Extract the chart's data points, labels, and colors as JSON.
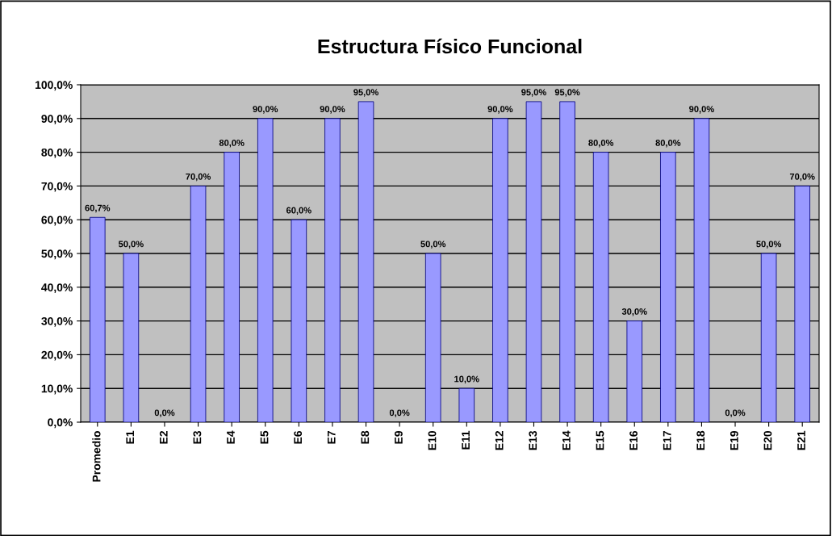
{
  "chart_data": {
    "type": "bar",
    "title": "Estructura Físico Funcional",
    "categories": [
      "Promedio",
      "E1",
      "E2",
      "E3",
      "E4",
      "E5",
      "E6",
      "E7",
      "E8",
      "E9",
      "E10",
      "E11",
      "E12",
      "E13",
      "E14",
      "E15",
      "E16",
      "E17",
      "E18",
      "E19",
      "E20",
      "E21"
    ],
    "values": [
      60.7,
      50,
      0,
      70,
      80,
      90,
      60,
      90,
      95,
      0,
      50,
      10,
      90,
      95,
      95,
      80,
      30,
      80,
      90,
      0,
      50,
      70
    ],
    "value_labels": [
      "60,7%",
      "50,0%",
      "0,0%",
      "70,0%",
      "80,0%",
      "90,0%",
      "60,0%",
      "90,0%",
      "95,0%",
      "0,0%",
      "50,0%",
      "10,0%",
      "90,0%",
      "95,0%",
      "95,0%",
      "80,0%",
      "30,0%",
      "80,0%",
      "90,0%",
      "0,0%",
      "50,0%",
      "70,0%"
    ],
    "color": "#9999ff",
    "ylim": [
      0,
      100
    ],
    "yticks": [
      {
        "value": 0,
        "label": "0,0%"
      },
      {
        "value": 10,
        "label": "10,0%"
      },
      {
        "value": 20,
        "label": "20,0%"
      },
      {
        "value": 30,
        "label": "30,0%"
      },
      {
        "value": 40,
        "label": "40,0%"
      },
      {
        "value": 50,
        "label": "50,0%"
      },
      {
        "value": 60,
        "label": "60,0%"
      },
      {
        "value": 70,
        "label": "70,0%"
      },
      {
        "value": 80,
        "label": "80,0%"
      },
      {
        "value": 90,
        "label": "90,0%"
      },
      {
        "value": 100,
        "label": "100,0%"
      }
    ],
    "grid": "y"
  }
}
